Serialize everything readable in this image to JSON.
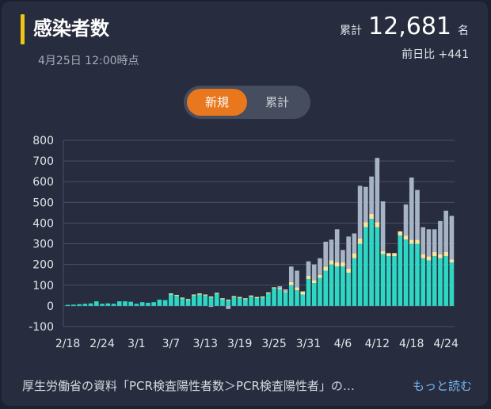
{
  "header": {
    "title": "感染者数",
    "updated": "4月25日 12:00時点",
    "total_label": "累計",
    "total_value": "12,681",
    "total_unit": "名",
    "diff_text": "前日比 +441"
  },
  "toggle": {
    "new_label": "新規",
    "cumulative_label": "累計"
  },
  "footer": {
    "source_text": "厚生労働省の資料「PCR検査陽性者数＞PCR検査陽性者」の…",
    "more_label": "もっと読む"
  },
  "colors": {
    "confirmed": "#2ed6c4",
    "series2": "#f5e6a2",
    "series3": "#a7b4c6",
    "accent": "#f0c419",
    "toggle_active": "#e8771e"
  },
  "chart_data": {
    "type": "bar",
    "stacked": true,
    "ylim": [
      -100,
      800
    ],
    "yticks": [
      -100,
      0,
      100,
      200,
      300,
      400,
      500,
      600,
      700,
      800
    ],
    "x_tick_labels": [
      "2/18",
      "2/24",
      "3/1",
      "3/7",
      "3/13",
      "3/19",
      "3/25",
      "3/31",
      "4/6",
      "4/12",
      "4/18",
      "4/24"
    ],
    "x_tick_index": [
      0,
      6,
      12,
      18,
      24,
      30,
      36,
      42,
      48,
      54,
      60,
      66
    ],
    "grid": true,
    "series": [
      {
        "values": [
          5,
          6,
          8,
          10,
          12,
          22,
          10,
          12,
          10,
          22,
          22,
          20,
          10,
          18,
          15,
          18,
          30,
          28,
          55,
          48,
          35,
          28,
          50,
          55,
          50,
          40,
          58,
          32,
          25,
          42,
          38,
          32,
          45,
          38,
          40,
          60,
          85,
          80,
          65,
          100,
          75,
          55,
          130,
          110,
          135,
          170,
          200,
          190,
          190,
          160,
          230,
          300,
          380,
          420,
          380,
          250,
          240,
          240,
          340,
          320,
          300,
          300,
          230,
          220,
          240,
          230,
          240,
          210
        ]
      },
      {
        "values": [
          0,
          0,
          0,
          0,
          0,
          0,
          0,
          0,
          0,
          0,
          0,
          0,
          0,
          0,
          0,
          0,
          0,
          0,
          5,
          5,
          5,
          5,
          5,
          5,
          5,
          5,
          5,
          5,
          5,
          5,
          5,
          5,
          5,
          5,
          5,
          5,
          5,
          5,
          5,
          15,
          15,
          15,
          15,
          15,
          15,
          20,
          20,
          20,
          20,
          20,
          25,
          25,
          25,
          25,
          25,
          15,
          15,
          15,
          20,
          20,
          20,
          20,
          20,
          20,
          20,
          20,
          20,
          15
        ]
      },
      {
        "values": [
          0,
          0,
          0,
          0,
          0,
          0,
          0,
          0,
          0,
          0,
          0,
          0,
          0,
          0,
          0,
          0,
          0,
          0,
          0,
          0,
          0,
          0,
          0,
          0,
          0,
          -5,
          0,
          0,
          -15,
          0,
          0,
          0,
          0,
          0,
          0,
          0,
          0,
          10,
          10,
          75,
          80,
          0,
          70,
          75,
          80,
          120,
          100,
          160,
          60,
          155,
          95,
          255,
          170,
          180,
          310,
          240,
          0,
          0,
          0,
          150,
          300,
          240,
          130,
          130,
          110,
          160,
          200,
          210
        ]
      }
    ]
  }
}
